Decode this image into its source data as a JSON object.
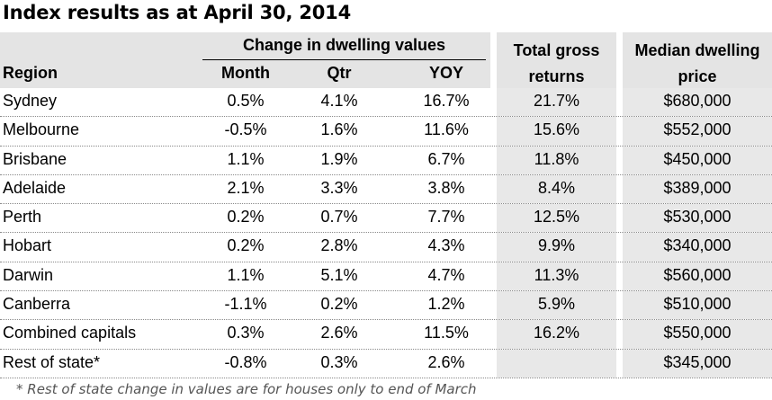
{
  "title": "Index results as at April 30, 2014",
  "header": {
    "group": "Change in dwelling values",
    "region": "Region",
    "month": "Month",
    "qtr": "Qtr",
    "yoy": "YOY",
    "total_gross_line1": "Total gross",
    "total_gross_line2": "returns",
    "median_line1": "Median dwelling",
    "median_line2": "price"
  },
  "chart_data": {
    "type": "table",
    "title": "Index results as at April 30, 2014",
    "columns": [
      "Region",
      "Month",
      "Qtr",
      "YOY",
      "Total gross returns",
      "Median dwelling price"
    ],
    "rows": [
      {
        "region": "Sydney",
        "month": "0.5%",
        "qtr": "4.1%",
        "yoy": "16.7%",
        "total": "21.7%",
        "median": "$680,000"
      },
      {
        "region": "Melbourne",
        "month": "-0.5%",
        "qtr": "1.6%",
        "yoy": "11.6%",
        "total": "15.6%",
        "median": "$552,000"
      },
      {
        "region": "Brisbane",
        "month": "1.1%",
        "qtr": "1.9%",
        "yoy": "6.7%",
        "total": "11.8%",
        "median": "$450,000"
      },
      {
        "region": "Adelaide",
        "month": "2.1%",
        "qtr": "3.3%",
        "yoy": "3.8%",
        "total": "8.4%",
        "median": "$389,000"
      },
      {
        "region": "Perth",
        "month": "0.2%",
        "qtr": "0.7%",
        "yoy": "7.7%",
        "total": "12.5%",
        "median": "$530,000"
      },
      {
        "region": "Hobart",
        "month": "0.2%",
        "qtr": "2.8%",
        "yoy": "4.3%",
        "total": "9.9%",
        "median": "$340,000"
      },
      {
        "region": "Darwin",
        "month": "1.1%",
        "qtr": "5.1%",
        "yoy": "4.7%",
        "total": "11.3%",
        "median": "$560,000"
      },
      {
        "region": "Canberra",
        "month": "-1.1%",
        "qtr": "0.2%",
        "yoy": "1.2%",
        "total": "5.9%",
        "median": "$510,000"
      },
      {
        "region": "Combined capitals",
        "month": "0.3%",
        "qtr": "2.6%",
        "yoy": "11.5%",
        "total": "16.2%",
        "median": "$550,000"
      },
      {
        "region": "Rest of state*",
        "month": "-0.8%",
        "qtr": "0.3%",
        "yoy": "2.6%",
        "total": "",
        "median": "$345,000"
      }
    ]
  },
  "footnote": "* Rest of state change in values are for houses only to end of March"
}
